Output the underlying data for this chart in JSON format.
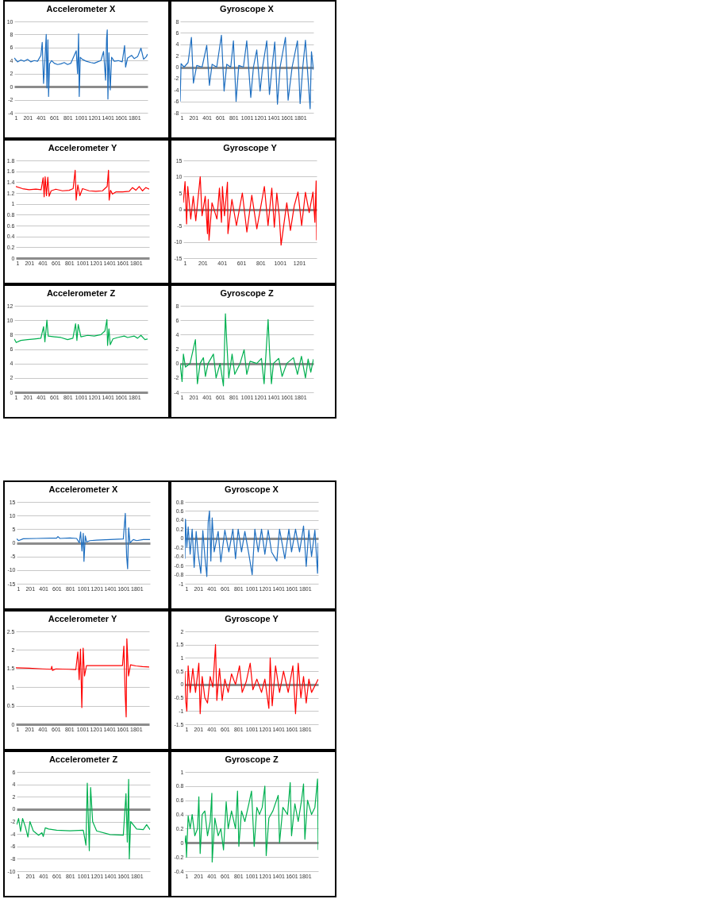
{
  "chart_data": [
    {
      "type": "line",
      "title": "Accelerometer X",
      "color": "#1f6fc0",
      "grid": "y",
      "xlim": [
        1,
        2000
      ],
      "xticks": [
        1,
        201,
        401,
        601,
        801,
        1001,
        1201,
        1401,
        1601,
        1801
      ],
      "ylim": [
        -4,
        10
      ],
      "yticks": [
        -4,
        -2,
        0,
        2,
        4,
        6,
        8,
        10
      ],
      "x": [
        1,
        50,
        100,
        150,
        200,
        250,
        300,
        350,
        400,
        420,
        440,
        460,
        480,
        490,
        505,
        515,
        530,
        560,
        600,
        650,
        700,
        750,
        800,
        850,
        900,
        930,
        950,
        965,
        975,
        990,
        1020,
        1080,
        1150,
        1200,
        1250,
        1300,
        1340,
        1370,
        1385,
        1395,
        1405,
        1420,
        1440,
        1460,
        1500,
        1560,
        1620,
        1655,
        1670,
        1700,
        1760,
        1800,
        1850,
        1900,
        1940,
        1980,
        2000
      ],
      "values": [
        4.4,
        3.8,
        4.1,
        3.9,
        4.2,
        3.8,
        4.0,
        3.9,
        4.8,
        6.8,
        0.5,
        4.0,
        8.0,
        -0.2,
        7.2,
        -1.5,
        3.5,
        4.0,
        3.6,
        3.4,
        3.5,
        3.7,
        3.4,
        3.6,
        4.8,
        5.5,
        2.0,
        8.1,
        -1.5,
        4.5,
        4.2,
        3.9,
        3.7,
        3.6,
        3.8,
        4.0,
        5.4,
        1.0,
        7.4,
        8.7,
        -1.9,
        5.2,
        -0.5,
        4.5,
        3.9,
        4.0,
        3.8,
        6.3,
        3.0,
        4.4,
        4.8,
        4.3,
        4.6,
        5.9,
        4.2,
        4.6,
        5.0
      ]
    },
    {
      "type": "line",
      "title": "Gyroscope X",
      "color": "#1f6fc0",
      "grid": "y",
      "xlim": [
        1,
        2000
      ],
      "xticks": [
        1,
        201,
        401,
        601,
        801,
        1001,
        1201,
        1401,
        1601,
        1801
      ],
      "ylim": [
        -8,
        8
      ],
      "yticks": [
        -8,
        -6,
        -4,
        -2,
        0,
        2,
        4,
        6,
        8
      ],
      "x": [
        1,
        15,
        60,
        120,
        170,
        200,
        250,
        330,
        400,
        440,
        480,
        550,
        620,
        660,
        700,
        760,
        800,
        840,
        880,
        950,
        1000,
        1060,
        1100,
        1150,
        1200,
        1240,
        1300,
        1340,
        1380,
        1420,
        1460,
        1500,
        1580,
        1620,
        1680,
        1760,
        1800,
        1840,
        1880,
        1950,
        1970,
        2000
      ],
      "values": [
        -6,
        0.6,
        0,
        0.8,
        5.2,
        -2.8,
        0.3,
        0,
        3.8,
        -3.2,
        0.5,
        0,
        5.6,
        -4.2,
        0.5,
        0,
        4.6,
        -6,
        0.3,
        0,
        4.6,
        -5.3,
        0,
        3.0,
        -4.2,
        0.2,
        4.6,
        -4.8,
        0,
        4.4,
        -6.5,
        0,
        5.2,
        -5.8,
        0,
        4.6,
        -6.4,
        0,
        4.7,
        -7.3,
        2.7,
        -0.5
      ]
    },
    {
      "type": "line",
      "title": "Accelerometer Y",
      "color": "#ff0000",
      "grid": "y",
      "xlim": [
        1,
        2000
      ],
      "xticks": [
        1,
        201,
        401,
        601,
        801,
        1001,
        1201,
        1401,
        1601,
        1801
      ],
      "ylim": [
        0,
        1.8
      ],
      "yticks": [
        0,
        0.2,
        0.4,
        0.6,
        0.8,
        1,
        1.2,
        1.4,
        1.6,
        1.8
      ],
      "x": [
        1,
        100,
        200,
        300,
        380,
        410,
        425,
        440,
        460,
        480,
        500,
        530,
        600,
        700,
        800,
        860,
        890,
        905,
        930,
        960,
        1000,
        1100,
        1200,
        1300,
        1370,
        1390,
        1400,
        1420,
        1450,
        1500,
        1600,
        1700,
        1750,
        1800,
        1850,
        1900,
        1950,
        2000
      ],
      "values": [
        1.32,
        1.28,
        1.26,
        1.27,
        1.26,
        1.48,
        1.13,
        1.5,
        1.15,
        1.49,
        1.14,
        1.24,
        1.27,
        1.24,
        1.25,
        1.28,
        1.62,
        1.07,
        1.35,
        1.15,
        1.28,
        1.24,
        1.23,
        1.24,
        1.32,
        1.62,
        1.07,
        1.25,
        1.18,
        1.22,
        1.22,
        1.23,
        1.3,
        1.25,
        1.32,
        1.24,
        1.3,
        1.27
      ]
    },
    {
      "type": "line",
      "title": "Gyroscope Y",
      "color": "#ff0000",
      "grid": "y",
      "xlim": [
        1,
        1381
      ],
      "xticks": [
        1,
        201,
        401,
        601,
        801,
        1001,
        1201
      ],
      "ylim": [
        -15,
        15
      ],
      "yticks": [
        -15,
        -10,
        -5,
        0,
        5,
        10,
        15
      ],
      "x": [
        1,
        19,
        35,
        47,
        78,
        104,
        130,
        176,
        195,
        228,
        251,
        259,
        267,
        298,
        349,
        375,
        396,
        406,
        427,
        458,
        463,
        504,
        551,
        612,
        659,
        710,
        762,
        840,
        878,
        917,
        943,
        969,
        994,
        1013,
        1072,
        1110,
        1149,
        1188,
        1226,
        1265,
        1304,
        1343,
        1363,
        1376,
        1381
      ],
      "values": [
        2,
        8.5,
        -4.5,
        7,
        -3,
        4,
        -3.5,
        10,
        -2,
        4,
        -7.5,
        3,
        -9.5,
        2,
        -3,
        6.5,
        -4,
        7,
        -2,
        8.3,
        -7.5,
        3,
        -5,
        5,
        -7,
        4.3,
        -6,
        7,
        -5,
        6.5,
        -5.5,
        5,
        -2,
        -11,
        2,
        -6.5,
        1,
        5.3,
        -5,
        5.2,
        -1,
        5.3,
        -4,
        8.7,
        -9.5
      ]
    },
    {
      "type": "line",
      "title": "Accelerometer Z",
      "color": "#00b050",
      "grid": "y",
      "xlim": [
        1,
        2000
      ],
      "xticks": [
        1,
        201,
        401,
        601,
        801,
        1001,
        1201,
        1401,
        1601,
        1801
      ],
      "ylim": [
        0,
        12
      ],
      "yticks": [
        0,
        2,
        4,
        6,
        8,
        10,
        12
      ],
      "x": [
        1,
        30,
        100,
        200,
        300,
        400,
        440,
        460,
        490,
        510,
        600,
        700,
        800,
        880,
        920,
        940,
        960,
        1000,
        1100,
        1200,
        1300,
        1360,
        1390,
        1400,
        1420,
        1440,
        1480,
        1550,
        1650,
        1700,
        1800,
        1850,
        1900,
        1960,
        2000
      ],
      "values": [
        7.4,
        6.9,
        7.2,
        7.3,
        7.4,
        7.5,
        9.1,
        7.0,
        10.0,
        7.8,
        7.7,
        7.6,
        7.3,
        7.5,
        9.5,
        7.2,
        9.4,
        7.7,
        7.9,
        7.8,
        8.0,
        8.5,
        10.1,
        6.5,
        8.8,
        6.6,
        7.4,
        7.6,
        7.8,
        7.6,
        7.8,
        7.5,
        7.9,
        7.3,
        7.4
      ]
    },
    {
      "type": "line",
      "title": "Gyroscope Z",
      "color": "#00b050",
      "grid": "y",
      "xlim": [
        1,
        2000
      ],
      "xticks": [
        1,
        201,
        401,
        601,
        801,
        1001,
        1201,
        1401,
        1601,
        1801
      ],
      "ylim": [
        -4,
        8
      ],
      "yticks": [
        -4,
        -2,
        0,
        2,
        4,
        6,
        8
      ],
      "x": [
        1,
        30,
        50,
        80,
        150,
        230,
        260,
        300,
        350,
        380,
        420,
        500,
        540,
        600,
        650,
        680,
        700,
        730,
        780,
        820,
        900,
        960,
        1000,
        1050,
        1150,
        1220,
        1260,
        1320,
        1340,
        1370,
        1400,
        1480,
        1530,
        1600,
        1700,
        1760,
        1820,
        1880,
        1920,
        1960,
        2000
      ],
      "values": [
        0,
        -2.5,
        1.3,
        -0.5,
        0,
        3.3,
        -2.8,
        0,
        0.8,
        -1.8,
        0,
        1.3,
        -2,
        0,
        -3.1,
        6.9,
        3,
        -2,
        1.3,
        -1.5,
        0,
        1.9,
        -1.5,
        0.3,
        0,
        0.7,
        -2.8,
        6.1,
        2,
        -2.8,
        0,
        0.7,
        -1.8,
        0,
        0.8,
        -1.5,
        1,
        -2,
        0.6,
        -1.2,
        0.6
      ]
    },
    {
      "type": "line",
      "title": "Accelerometer X",
      "color": "#1f6fc0",
      "grid": "y",
      "xlim": [
        1,
        2000
      ],
      "xticks": [
        1,
        201,
        401,
        601,
        801,
        1001,
        1201,
        1401,
        1601,
        1801
      ],
      "ylim": [
        -15,
        15
      ],
      "yticks": [
        -15,
        -10,
        -5,
        0,
        5,
        10,
        15
      ],
      "x": [
        1,
        30,
        100,
        300,
        500,
        600,
        620,
        650,
        800,
        900,
        940,
        960,
        980,
        1000,
        1010,
        1030,
        1050,
        1100,
        1200,
        1400,
        1600,
        1630,
        1650,
        1665,
        1680,
        1700,
        1750,
        1800,
        1900,
        2000
      ],
      "values": [
        1.5,
        0.8,
        1.5,
        1.6,
        1.7,
        1.7,
        2.3,
        1.6,
        1.8,
        1.6,
        0,
        4.0,
        -3,
        3.5,
        -6.8,
        2.5,
        0.3,
        0.8,
        1.0,
        1.2,
        1.4,
        10.8,
        -5,
        -9.5,
        5.5,
        0,
        1.2,
        0.8,
        1.2,
        1.2
      ]
    },
    {
      "type": "line",
      "title": "Gyroscope X",
      "color": "#1f6fc0",
      "grid": "y",
      "xlim": [
        1,
        2000
      ],
      "xticks": [
        1,
        201,
        401,
        601,
        801,
        1001,
        1201,
        1401,
        1601,
        1801
      ],
      "ylim": [
        -1,
        0.8
      ],
      "yticks": [
        -1,
        -0.8,
        -0.6,
        -0.4,
        -0.2,
        0,
        0.2,
        0.4,
        0.6,
        0.8
      ],
      "x": [
        1,
        10,
        30,
        50,
        80,
        110,
        140,
        170,
        200,
        240,
        270,
        300,
        330,
        350,
        370,
        390,
        410,
        440,
        500,
        540,
        600,
        660,
        720,
        760,
        800,
        850,
        900,
        960,
        1010,
        1050,
        1100,
        1150,
        1200,
        1250,
        1300,
        1380,
        1420,
        1500,
        1560,
        1600,
        1660,
        1720,
        1780,
        1820,
        1860,
        1900,
        1950,
        1990,
        2000
      ],
      "values": [
        -0.45,
        0.42,
        -0.2,
        0.25,
        -0.35,
        0.2,
        -0.64,
        0.15,
        -0.35,
        -0.77,
        0.17,
        -0.4,
        -0.84,
        0.35,
        0.6,
        -0.5,
        0.45,
        -0.3,
        0.15,
        -0.52,
        0.18,
        -0.3,
        0.2,
        -0.45,
        0.2,
        -0.3,
        0.15,
        -0.35,
        -0.8,
        0.2,
        -0.3,
        0.2,
        -0.35,
        0.18,
        -0.3,
        -0.5,
        0.2,
        -0.45,
        0.2,
        -0.3,
        0.2,
        -0.3,
        0.27,
        -0.62,
        0.18,
        -0.4,
        0.18,
        -0.77,
        -0.1
      ]
    },
    {
      "type": "line",
      "title": "Accelerometer Y",
      "color": "#ff0000",
      "grid": "y",
      "xlim": [
        1,
        2000
      ],
      "xticks": [
        1,
        201,
        401,
        601,
        801,
        1001,
        1201,
        1401,
        1601,
        1801
      ],
      "ylim": [
        0,
        2.5
      ],
      "yticks": [
        0,
        0.5,
        1,
        1.5,
        2,
        2.5
      ],
      "x": [
        1,
        200,
        400,
        530,
        540,
        550,
        600,
        800,
        900,
        930,
        950,
        970,
        990,
        1010,
        1030,
        1060,
        1200,
        1400,
        1600,
        1620,
        1640,
        1655,
        1665,
        1690,
        1720,
        1800,
        1900,
        2000
      ],
      "values": [
        1.52,
        1.51,
        1.49,
        1.48,
        1.56,
        1.45,
        1.49,
        1.48,
        1.47,
        1.95,
        1.2,
        2.02,
        0.45,
        2.05,
        1.3,
        1.58,
        1.58,
        1.58,
        1.58,
        2.1,
        0.8,
        0.2,
        2.3,
        1.3,
        1.6,
        1.57,
        1.55,
        1.54
      ]
    },
    {
      "type": "line",
      "title": "Gyroscope Y",
      "color": "#ff0000",
      "grid": "y",
      "xlim": [
        1,
        2000
      ],
      "xticks": [
        1,
        201,
        401,
        601,
        801,
        1001,
        1201,
        1401,
        1601,
        1801
      ],
      "ylim": [
        -1.5,
        2
      ],
      "yticks": [
        -1.5,
        -1,
        -0.5,
        0,
        0.5,
        1,
        1.5,
        2
      ],
      "x": [
        1,
        15,
        30,
        50,
        80,
        120,
        160,
        210,
        230,
        260,
        300,
        340,
        380,
        420,
        460,
        480,
        520,
        560,
        600,
        650,
        700,
        760,
        820,
        860,
        920,
        980,
        1020,
        1080,
        1150,
        1200,
        1260,
        1280,
        1310,
        1360,
        1420,
        1480,
        1550,
        1620,
        1660,
        1700,
        1740,
        1780,
        1820,
        1860,
        1900,
        2000
      ],
      "values": [
        0.5,
        -0.65,
        -1.0,
        0.7,
        -0.3,
        0.6,
        -0.3,
        0.8,
        -1.1,
        0.3,
        -0.5,
        -0.7,
        0.3,
        -0.1,
        1.5,
        -0.6,
        0.6,
        -0.6,
        0.2,
        -0.3,
        0.4,
        0,
        0.7,
        -0.3,
        0.1,
        0.8,
        -0.2,
        0.2,
        -0.3,
        0.2,
        -0.9,
        1.0,
        -0.8,
        0.7,
        -0.3,
        0.5,
        -0.3,
        0.7,
        -1.1,
        0.8,
        -0.5,
        0.3,
        -0.7,
        0.2,
        -0.3,
        0.2
      ]
    },
    {
      "type": "line",
      "title": "Accelerometer Z",
      "color": "#00b050",
      "grid": "y",
      "xlim": [
        1,
        2000
      ],
      "xticks": [
        1,
        201,
        401,
        601,
        801,
        1001,
        1201,
        1401,
        1601,
        1801
      ],
      "ylim": [
        -10,
        6
      ],
      "yticks": [
        -10,
        -8,
        -6,
        -4,
        -2,
        0,
        2,
        4,
        6
      ],
      "x": [
        1,
        30,
        60,
        90,
        130,
        170,
        200,
        250,
        330,
        380,
        400,
        430,
        480,
        600,
        800,
        1000,
        1040,
        1060,
        1090,
        1110,
        1140,
        1200,
        1400,
        1600,
        1640,
        1660,
        1680,
        1690,
        1710,
        1800,
        1900,
        1950,
        2000
      ],
      "values": [
        -2.5,
        -1.5,
        -3.6,
        -1.5,
        -2.8,
        -4.5,
        -2,
        -3.5,
        -4.2,
        -3.8,
        -4.4,
        -3,
        -3.2,
        -3.4,
        -3.5,
        -3.4,
        -5.8,
        4.2,
        -6.7,
        3.5,
        -2,
        -3.5,
        -4.1,
        -4.2,
        2.5,
        -5.3,
        4.8,
        -8,
        -2,
        -3.2,
        -3.3,
        -2.5,
        -3.3
      ]
    },
    {
      "type": "line",
      "title": "Gyroscope Z",
      "color": "#00b050",
      "grid": "y",
      "xlim": [
        1,
        2000
      ],
      "xticks": [
        1,
        201,
        401,
        601,
        801,
        1001,
        1201,
        1401,
        1601,
        1801
      ],
      "ylim": [
        -0.4,
        1
      ],
      "yticks": [
        -0.4,
        -0.2,
        0,
        0.2,
        0.4,
        0.6,
        0.8,
        1
      ],
      "x": [
        1,
        15,
        25,
        50,
        80,
        110,
        150,
        190,
        210,
        230,
        260,
        300,
        340,
        380,
        405,
        410,
        450,
        500,
        540,
        580,
        620,
        650,
        700,
        760,
        790,
        810,
        850,
        900,
        960,
        1000,
        1040,
        1080,
        1120,
        1160,
        1200,
        1220,
        1260,
        1320,
        1400,
        1420,
        1470,
        1540,
        1580,
        1600,
        1650,
        1700,
        1750,
        1780,
        1800,
        1840,
        1900,
        1950,
        1990,
        2000
      ],
      "values": [
        0,
        0.1,
        -0.2,
        0.38,
        0.2,
        0.4,
        0.1,
        0.2,
        0.65,
        -0.15,
        0.4,
        0.45,
        0.1,
        0.3,
        0.7,
        -0.27,
        0.35,
        0.1,
        0.2,
        -0.1,
        0.58,
        0.2,
        0.45,
        0.2,
        0.73,
        -0.05,
        0.45,
        0.3,
        0.55,
        0.73,
        -0.05,
        0.5,
        0.4,
        0.5,
        0.8,
        -0.18,
        0.35,
        0.45,
        0.67,
        0,
        0.5,
        0.4,
        0.85,
        0.1,
        0.55,
        0.3,
        0.6,
        0.83,
        0.05,
        0.6,
        0.4,
        0.5,
        0.9,
        -0.1
      ]
    }
  ]
}
